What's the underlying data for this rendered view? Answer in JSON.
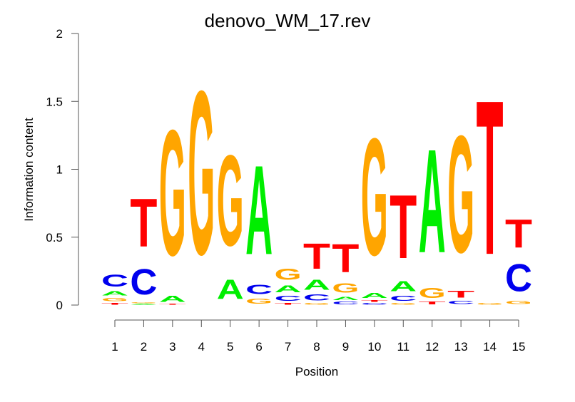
{
  "chart_data": {
    "type": "sequence-logo",
    "title": "denovo_WM_17.rev",
    "xlabel": "Position",
    "ylabel": "Information content",
    "ylim": [
      0,
      2
    ],
    "yticks": [
      "0",
      "0.5",
      "1",
      "1.5",
      "2"
    ],
    "ytick_values": [
      0,
      0.5,
      1,
      1.5,
      2
    ],
    "categories": [
      "1",
      "2",
      "3",
      "4",
      "5",
      "6",
      "7",
      "8",
      "9",
      "10",
      "11",
      "12",
      "13",
      "14",
      "15"
    ],
    "colors": {
      "A": "#00ee00",
      "C": "#0000ee",
      "G": "#ffa500",
      "T": "#ff0000"
    },
    "positions": [
      [
        [
          "T",
          0.02
        ],
        [
          "G",
          0.04
        ],
        [
          "A",
          0.05
        ],
        [
          "C",
          0.14
        ]
      ],
      [
        [
          "A",
          0.01
        ],
        [
          "G",
          0.01
        ],
        [
          "C",
          0.3
        ],
        [
          "T",
          0.57
        ]
      ],
      [
        [
          "T",
          0.01
        ],
        [
          "A",
          0.07
        ],
        [
          "G",
          1.48
        ]
      ],
      [
        [
          "G",
          1.93
        ]
      ],
      [
        [
          "A",
          0.23
        ],
        [
          "G",
          1.07
        ]
      ],
      [
        [
          "G",
          0.06
        ],
        [
          "C",
          0.11
        ],
        [
          "A",
          1.05
        ]
      ],
      [
        [
          "T",
          0.02
        ],
        [
          "C",
          0.06
        ],
        [
          "A",
          0.08
        ],
        [
          "G",
          0.13
        ]
      ],
      [
        [
          "G",
          0.02
        ],
        [
          "C",
          0.07
        ],
        [
          "A",
          0.12
        ],
        [
          "T",
          0.3
        ]
      ],
      [
        [
          "C",
          0.03
        ],
        [
          "A",
          0.04
        ],
        [
          "G",
          0.11
        ],
        [
          "T",
          0.33
        ]
      ],
      [
        [
          "C",
          0.02
        ],
        [
          "T",
          0.02
        ],
        [
          "A",
          0.06
        ],
        [
          "G",
          1.38
        ]
      ],
      [
        [
          "G",
          0.02
        ],
        [
          "C",
          0.06
        ],
        [
          "A",
          0.12
        ],
        [
          "T",
          0.75
        ]
      ],
      [
        [
          "T",
          0.03
        ],
        [
          "G",
          0.12
        ],
        [
          "A",
          1.22
        ]
      ],
      [
        [
          "C",
          0.04
        ],
        [
          "T",
          0.08
        ],
        [
          "G",
          1.38
        ]
      ],
      [
        [
          "G",
          0.02
        ],
        [
          "T",
          1.82
        ]
      ],
      [
        [
          "G",
          0.04
        ],
        [
          "C",
          0.32
        ],
        [
          "T",
          0.33
        ]
      ]
    ]
  }
}
